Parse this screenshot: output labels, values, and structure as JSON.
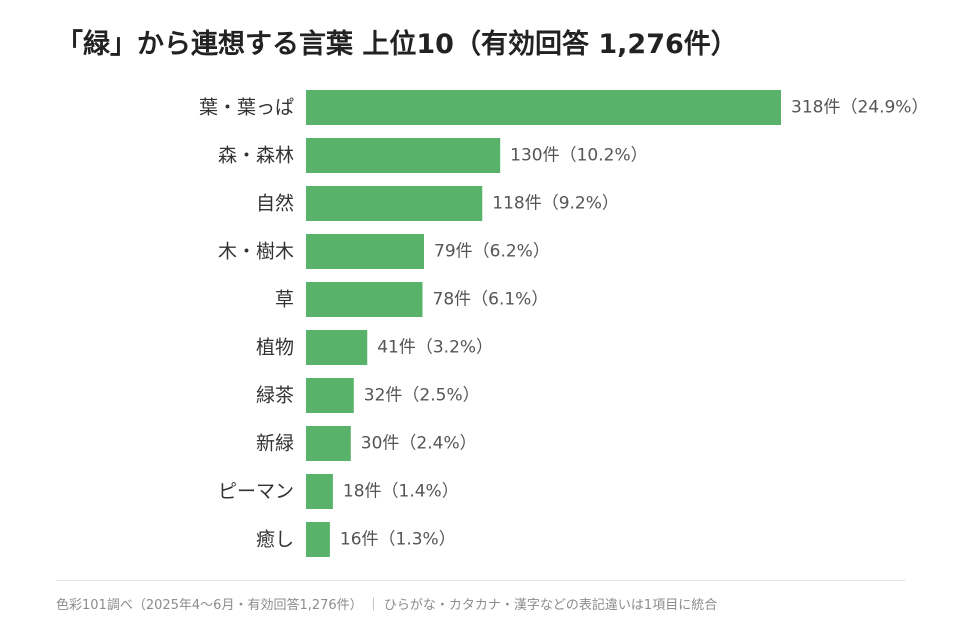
{
  "chart_data": {
    "type": "bar",
    "orientation": "horizontal",
    "title": "「緑」から連想する言葉 上位10（有効回答 1,276件）",
    "categories": [
      "葉・葉っぱ",
      "森・森林",
      "自然",
      "木・樹木",
      "草",
      "植物",
      "緑茶",
      "新緑",
      "ピーマン",
      "癒し"
    ],
    "values": [
      318,
      130,
      118,
      79,
      78,
      41,
      32,
      30,
      18,
      16
    ],
    "percents": [
      "24.9%",
      "10.2%",
      "9.2%",
      "6.2%",
      "6.1%",
      "3.2%",
      "2.5%",
      "2.4%",
      "1.4%",
      "1.3%"
    ],
    "value_labels": [
      "318件（24.9%）",
      "130件（10.2%）",
      "118件（9.2%）",
      "79件（6.2%）",
      "78件（6.1%）",
      "41件（3.2%）",
      "32件（2.5%）",
      "30件（2.4%）",
      "18件（1.4%）",
      "16件（1.3%）"
    ],
    "bar_color": "#58b26a",
    "grid": false,
    "legend": "none",
    "footnote": "色彩101調べ（2025年4〜6月・有効回答1,276件） ｜ ひらがな・カタカナ・漢字などの表記違いは1項目に統合"
  }
}
